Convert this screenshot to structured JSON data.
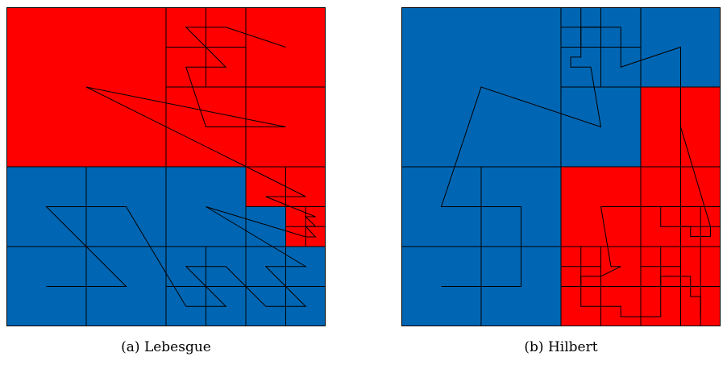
{
  "colors": {
    "red": "#ff0000",
    "blue": "#0066b3",
    "line": "#000000"
  },
  "panels": [
    {
      "caption": "(a) Lebesgue",
      "curve": "Lebesgue (Z-order) space-filling curve",
      "partition": "adaptive quadtree, red and blue regions"
    },
    {
      "caption": "(b) Hilbert",
      "curve": "Hilbert space-filling curve",
      "partition": "adaptive quadtree, red and blue regions"
    }
  ]
}
